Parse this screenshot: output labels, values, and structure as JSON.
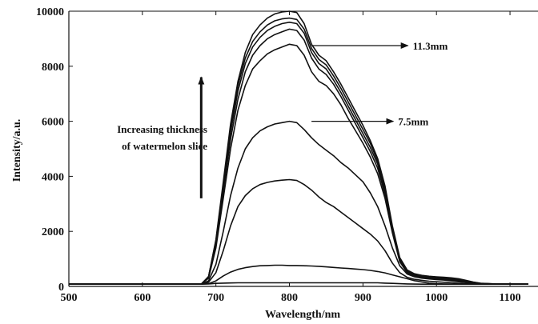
{
  "chart_data": {
    "type": "line",
    "xlabel": "Wavelength/nm",
    "ylabel": "Intensity/a.u.",
    "xlim": [
      500,
      1125
    ],
    "ylim": [
      0,
      10000
    ],
    "xticks": [
      500,
      600,
      700,
      800,
      900,
      1000,
      1100
    ],
    "yticks": [
      0,
      2000,
      4000,
      6000,
      8000,
      10000
    ],
    "grid": false,
    "legend": "none",
    "line_color": "#111111",
    "x": [
      500,
      650,
      680,
      690,
      700,
      710,
      720,
      730,
      740,
      750,
      760,
      770,
      780,
      790,
      800,
      810,
      820,
      830,
      840,
      850,
      860,
      870,
      880,
      890,
      900,
      910,
      920,
      930,
      940,
      950,
      960,
      970,
      980,
      990,
      1000,
      1010,
      1020,
      1030,
      1040,
      1050,
      1060,
      1080,
      1125
    ],
    "series": [
      {
        "values": [
          80,
          80,
          80,
          90,
          110,
          120,
          125,
          130,
          130,
          130,
          130,
          130,
          130,
          130,
          130,
          130,
          130,
          130,
          130,
          130,
          130,
          130,
          130,
          130,
          130,
          130,
          130,
          120,
          110,
          100,
          90,
          85,
          80,
          80,
          80,
          80,
          80,
          80,
          80,
          80,
          80,
          80,
          80
        ]
      },
      {
        "values": [
          80,
          80,
          80,
          100,
          200,
          380,
          520,
          620,
          680,
          720,
          750,
          760,
          770,
          770,
          760,
          760,
          750,
          740,
          730,
          710,
          690,
          670,
          650,
          630,
          610,
          580,
          540,
          490,
          420,
          350,
          280,
          210,
          160,
          120,
          100,
          90,
          85,
          80,
          80,
          80,
          80,
          80,
          80
        ]
      },
      {
        "values": [
          80,
          80,
          80,
          150,
          500,
          1300,
          2200,
          2900,
          3300,
          3550,
          3700,
          3780,
          3830,
          3860,
          3880,
          3850,
          3700,
          3500,
          3250,
          3050,
          2900,
          2700,
          2500,
          2300,
          2100,
          1900,
          1650,
          1300,
          850,
          500,
          330,
          260,
          220,
          190,
          170,
          150,
          130,
          110,
          95,
          85,
          80,
          80,
          80
        ]
      },
      {
        "values": [
          80,
          80,
          80,
          200,
          800,
          2000,
          3300,
          4300,
          5000,
          5400,
          5650,
          5800,
          5900,
          5950,
          6000,
          5950,
          5700,
          5400,
          5150,
          4950,
          4750,
          4500,
          4300,
          4050,
          3800,
          3400,
          2900,
          2200,
          1400,
          750,
          450,
          350,
          300,
          270,
          250,
          230,
          200,
          170,
          140,
          110,
          90,
          80,
          80
        ]
      },
      {
        "values": [
          80,
          80,
          80,
          300,
          1400,
          3200,
          5000,
          6400,
          7300,
          7900,
          8200,
          8450,
          8600,
          8700,
          8800,
          8750,
          8400,
          7800,
          7450,
          7300,
          7000,
          6600,
          6100,
          5650,
          5200,
          4700,
          4100,
          3200,
          1950,
          900,
          500,
          380,
          320,
          290,
          270,
          250,
          230,
          200,
          160,
          120,
          95,
          80,
          80
        ]
      },
      {
        "values": [
          80,
          80,
          80,
          320,
          1500,
          3450,
          5350,
          6800,
          7800,
          8400,
          8750,
          9000,
          9150,
          9250,
          9350,
          9300,
          8950,
          8300,
          7900,
          7700,
          7350,
          6900,
          6400,
          5900,
          5400,
          4900,
          4300,
          3350,
          2050,
          950,
          530,
          400,
          340,
          310,
          290,
          270,
          250,
          220,
          180,
          130,
          100,
          85,
          80
        ]
      },
      {
        "values": [
          80,
          80,
          80,
          340,
          1600,
          3600,
          5600,
          7100,
          8100,
          8700,
          9050,
          9300,
          9450,
          9550,
          9600,
          9550,
          9200,
          8500,
          8100,
          7900,
          7500,
          7050,
          6550,
          6050,
          5550,
          5050,
          4450,
          3450,
          2100,
          980,
          550,
          420,
          360,
          330,
          310,
          290,
          270,
          240,
          190,
          140,
          105,
          85,
          80
        ]
      },
      {
        "values": [
          80,
          80,
          80,
          350,
          1650,
          3700,
          5750,
          7300,
          8300,
          8900,
          9250,
          9500,
          9650,
          9720,
          9750,
          9700,
          9350,
          8650,
          8250,
          8050,
          7650,
          7200,
          6700,
          6200,
          5700,
          5200,
          4550,
          3550,
          2150,
          1000,
          570,
          440,
          380,
          350,
          330,
          310,
          290,
          260,
          200,
          150,
          110,
          90,
          80
        ]
      },
      {
        "values": [
          80,
          80,
          80,
          360,
          1700,
          3800,
          5900,
          7450,
          8500,
          9150,
          9500,
          9750,
          9900,
          9970,
          10000,
          9950,
          9550,
          8800,
          8400,
          8200,
          7800,
          7350,
          6850,
          6350,
          5850,
          5300,
          4650,
          3650,
          2200,
          1050,
          600,
          460,
          400,
          370,
          350,
          330,
          310,
          280,
          220,
          160,
          115,
          90,
          80
        ]
      }
    ],
    "annotations": [
      {
        "text": "11.3mm",
        "x": 830,
        "y": 8750,
        "text_x": 970,
        "text_y": 8750
      },
      {
        "text": "7.5mm",
        "x": 830,
        "y": 6000,
        "text_x": 950,
        "text_y": 6000
      },
      {
        "text": "Increasing thickness",
        "line": 1,
        "arrow_x": 680,
        "arrow_from": 3200,
        "arrow_to": 7600
      },
      {
        "text": "of watermelon slice",
        "line": 2
      }
    ]
  }
}
